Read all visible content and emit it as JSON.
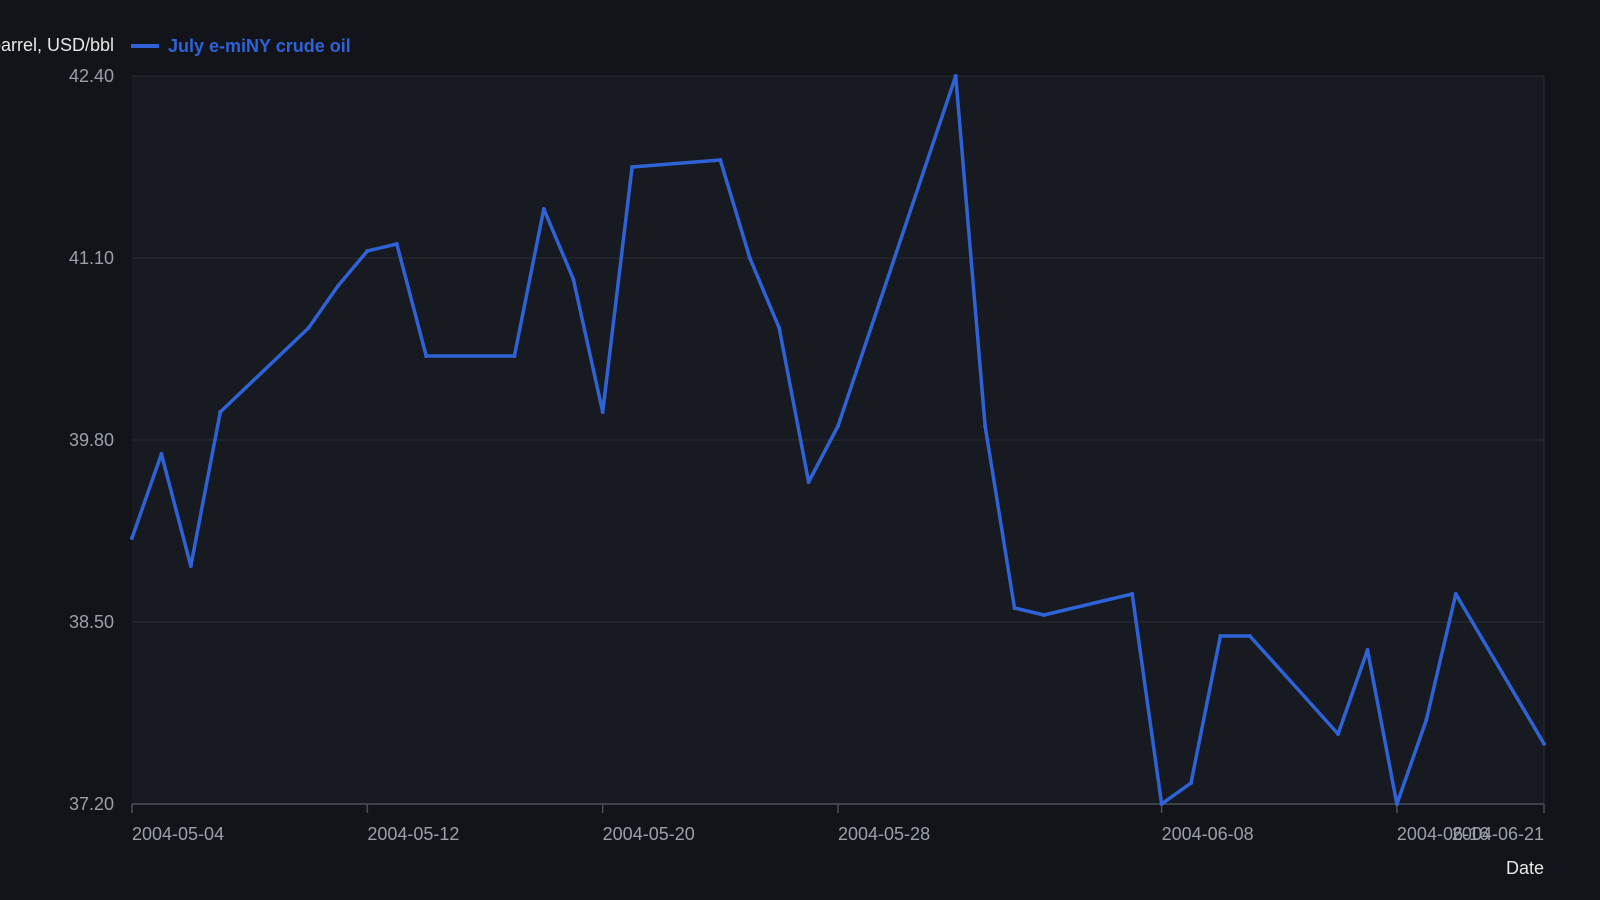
{
  "colors": {
    "page_background": "#121419",
    "plot_background": "#171a20",
    "grid": "#2a2d34",
    "axis": "#4a4e57",
    "tick_label": "#9aa0a8",
    "axis_title": "#e6e6e6",
    "series": "#2f62d6"
  },
  "chart_data": {
    "type": "line",
    "ylabel": "Price per barrel, USD/bbl",
    "xlabel": "Date",
    "legend": {
      "placement": "top-left",
      "entries": [
        "July e-miNY crude oil"
      ]
    },
    "grid": true,
    "ylim": [
      37.2,
      42.4
    ],
    "y_ticks": [
      "37.20",
      "38.50",
      "39.80",
      "41.10",
      "42.40"
    ],
    "x_range": [
      "2004-05-04",
      "2004-06-21"
    ],
    "x_ticks": [
      "2004-05-04",
      "2004-05-12",
      "2004-05-20",
      "2004-05-28",
      "2004-06-08",
      "2004-06-16",
      "2004-06-21"
    ],
    "series": [
      {
        "name": "July e-miNY crude oil",
        "points": [
          {
            "x": "2004-05-04",
            "y": 39.1
          },
          {
            "x": "2004-05-05",
            "y": 39.7
          },
          {
            "x": "2004-05-06",
            "y": 38.9
          },
          {
            "x": "2004-05-07",
            "y": 40.0
          },
          {
            "x": "2004-05-10",
            "y": 40.6
          },
          {
            "x": "2004-05-11",
            "y": 40.9
          },
          {
            "x": "2004-05-12",
            "y": 41.15
          },
          {
            "x": "2004-05-13",
            "y": 41.2
          },
          {
            "x": "2004-05-14",
            "y": 40.4
          },
          {
            "x": "2004-05-17",
            "y": 40.4
          },
          {
            "x": "2004-05-18",
            "y": 41.45
          },
          {
            "x": "2004-05-19",
            "y": 40.95
          },
          {
            "x": "2004-05-20",
            "y": 40.0
          },
          {
            "x": "2004-05-21",
            "y": 41.75
          },
          {
            "x": "2004-05-24",
            "y": 41.8
          },
          {
            "x": "2004-05-25",
            "y": 41.1
          },
          {
            "x": "2004-05-26",
            "y": 40.6
          },
          {
            "x": "2004-05-27",
            "y": 39.5
          },
          {
            "x": "2004-05-28",
            "y": 39.9
          },
          {
            "x": "2004-06-01",
            "y": 42.4
          },
          {
            "x": "2004-06-02",
            "y": 39.9
          },
          {
            "x": "2004-06-03",
            "y": 38.6
          },
          {
            "x": "2004-06-04",
            "y": 38.55
          },
          {
            "x": "2004-06-07",
            "y": 38.7
          },
          {
            "x": "2004-06-08",
            "y": 37.2
          },
          {
            "x": "2004-06-09",
            "y": 37.35
          },
          {
            "x": "2004-06-10",
            "y": 38.4
          },
          {
            "x": "2004-06-11",
            "y": 38.4
          },
          {
            "x": "2004-06-14",
            "y": 37.7
          },
          {
            "x": "2004-06-15",
            "y": 38.3
          },
          {
            "x": "2004-06-16",
            "y": 37.2
          },
          {
            "x": "2004-06-17",
            "y": 37.8
          },
          {
            "x": "2004-06-18",
            "y": 38.7
          },
          {
            "x": "2004-06-21",
            "y": 37.63
          }
        ]
      }
    ]
  }
}
